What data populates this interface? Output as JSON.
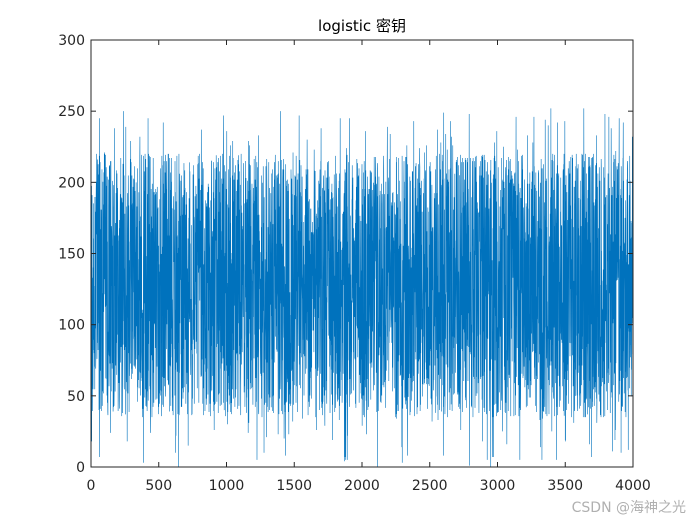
{
  "chart_data": {
    "type": "line",
    "title": "logistic 密钥",
    "xlabel": "",
    "ylabel": "",
    "xlim": [
      0,
      4000
    ],
    "ylim": [
      0,
      300
    ],
    "x_ticks": [
      0,
      500,
      1000,
      1500,
      2000,
      2500,
      3000,
      3500,
      4000
    ],
    "y_ticks": [
      0,
      50,
      100,
      150,
      200,
      250,
      300
    ],
    "x_tick_labels": [
      "0",
      "500",
      "1000",
      "1500",
      "2000",
      "2500",
      "3000",
      "3500",
      "4000"
    ],
    "y_tick_labels": [
      "0",
      "50",
      "100",
      "150",
      "200",
      "250",
      "300"
    ],
    "grid": false,
    "series": [
      {
        "color": "#0072BD",
        "n_points": 4000,
        "y_range": [
          0,
          255
        ],
        "dense_band": [
          35,
          220
        ]
      }
    ]
  },
  "watermark": "CSDN @海神之光"
}
